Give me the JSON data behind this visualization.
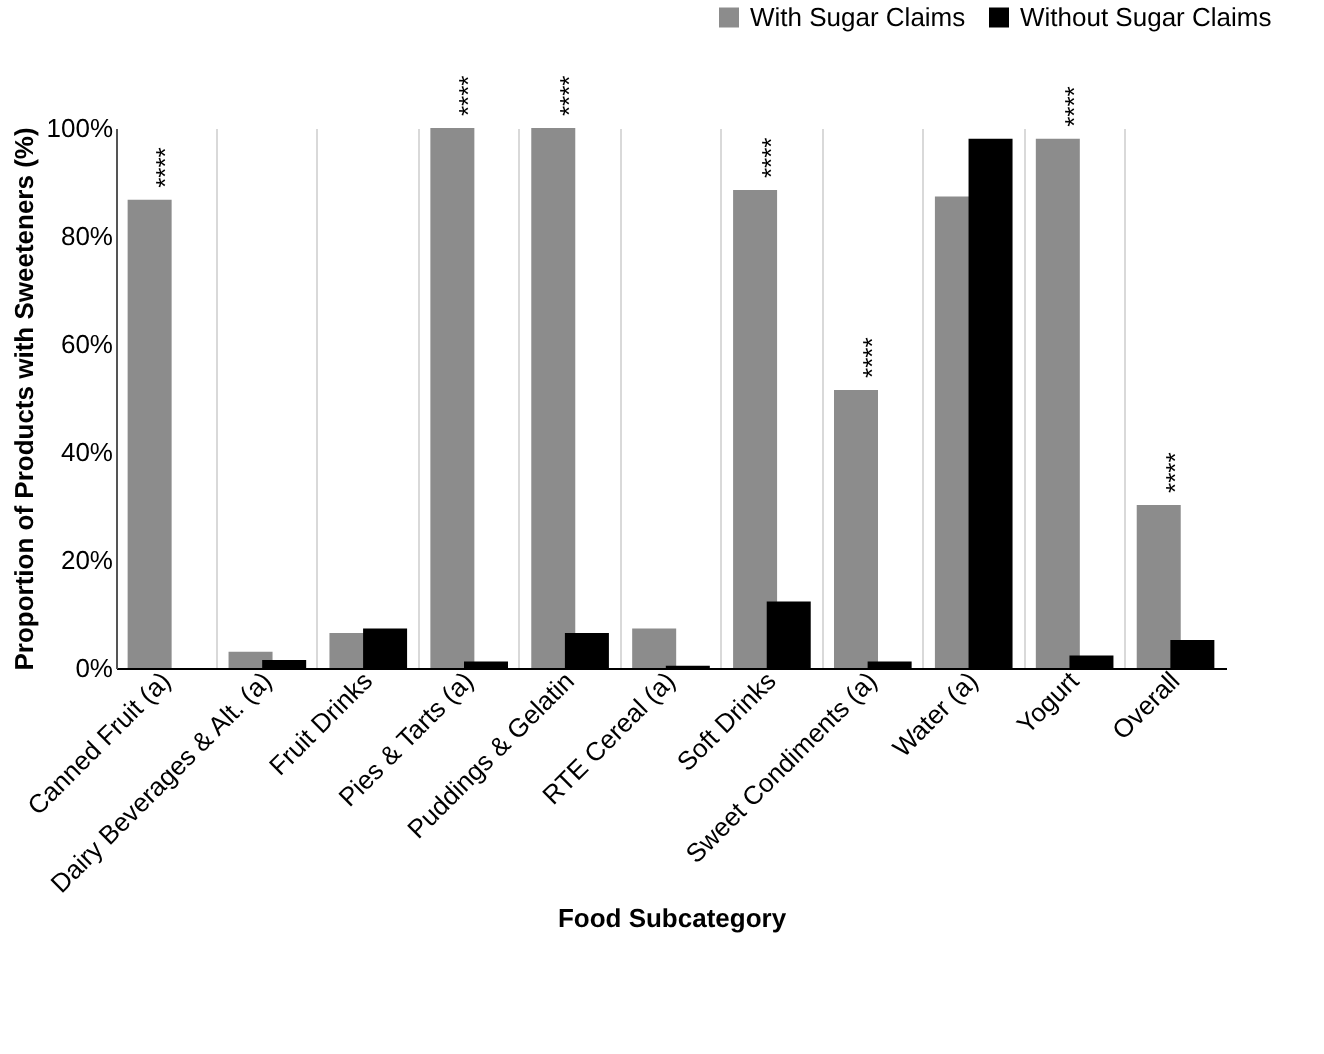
{
  "chart_data": {
    "type": "bar",
    "xlabel": "Food Subcategory",
    "ylabel": "Proportion of Products with Sweeteners (%)",
    "categories": [
      "Canned Fruit (a)",
      "Dairy Beverages & Alt. (a)",
      "Fruit Drinks",
      "Pies & Tarts (a)",
      "Puddings & Gelatin",
      "RTE Cereal (a)",
      "Soft Drinks",
      "Sweet Condiments (a)",
      "Water (a)",
      "Yogurt",
      "Overall"
    ],
    "series": [
      {
        "name": "With Sugar Claims",
        "color": "#8c8c8c",
        "values": [
          86.7,
          3,
          6.5,
          100,
          100,
          7.3,
          88.5,
          51.5,
          87.3,
          98,
          30.2
        ]
      },
      {
        "name": "Without Sugar Claims",
        "color": "#000000",
        "values": [
          0,
          1.5,
          7.3,
          1.2,
          6.5,
          0.4,
          12.3,
          1.2,
          98,
          2.3,
          5.2
        ]
      }
    ],
    "ylim": [
      0,
      100
    ],
    "yticks": [
      {
        "value": 0,
        "label": "0%"
      },
      {
        "value": 20,
        "label": "20%"
      },
      {
        "value": 40,
        "label": "40%"
      },
      {
        "value": 60,
        "label": "60%"
      },
      {
        "value": 80,
        "label": "80%"
      },
      {
        "value": 100,
        "label": "100%"
      }
    ],
    "annotations": [
      {
        "text": "****",
        "x": "Canned Fruit (a)",
        "y": 86.7
      },
      {
        "text": "****",
        "x": "Pies & Tarts (a)",
        "y": 100
      },
      {
        "text": "****",
        "x": "Puddings & Gelatin",
        "y": 100
      },
      {
        "text": "****",
        "x": "Soft Drinks",
        "y": 88.5
      },
      {
        "text": "****",
        "x": "Sweet Condiments (a)",
        "y": 51.5
      },
      {
        "text": "****",
        "x": "Yogurt",
        "y": 98
      },
      {
        "text": "****",
        "x": "Overall",
        "y": 30.2
      }
    ],
    "grid": "x",
    "legend": "top right"
  }
}
